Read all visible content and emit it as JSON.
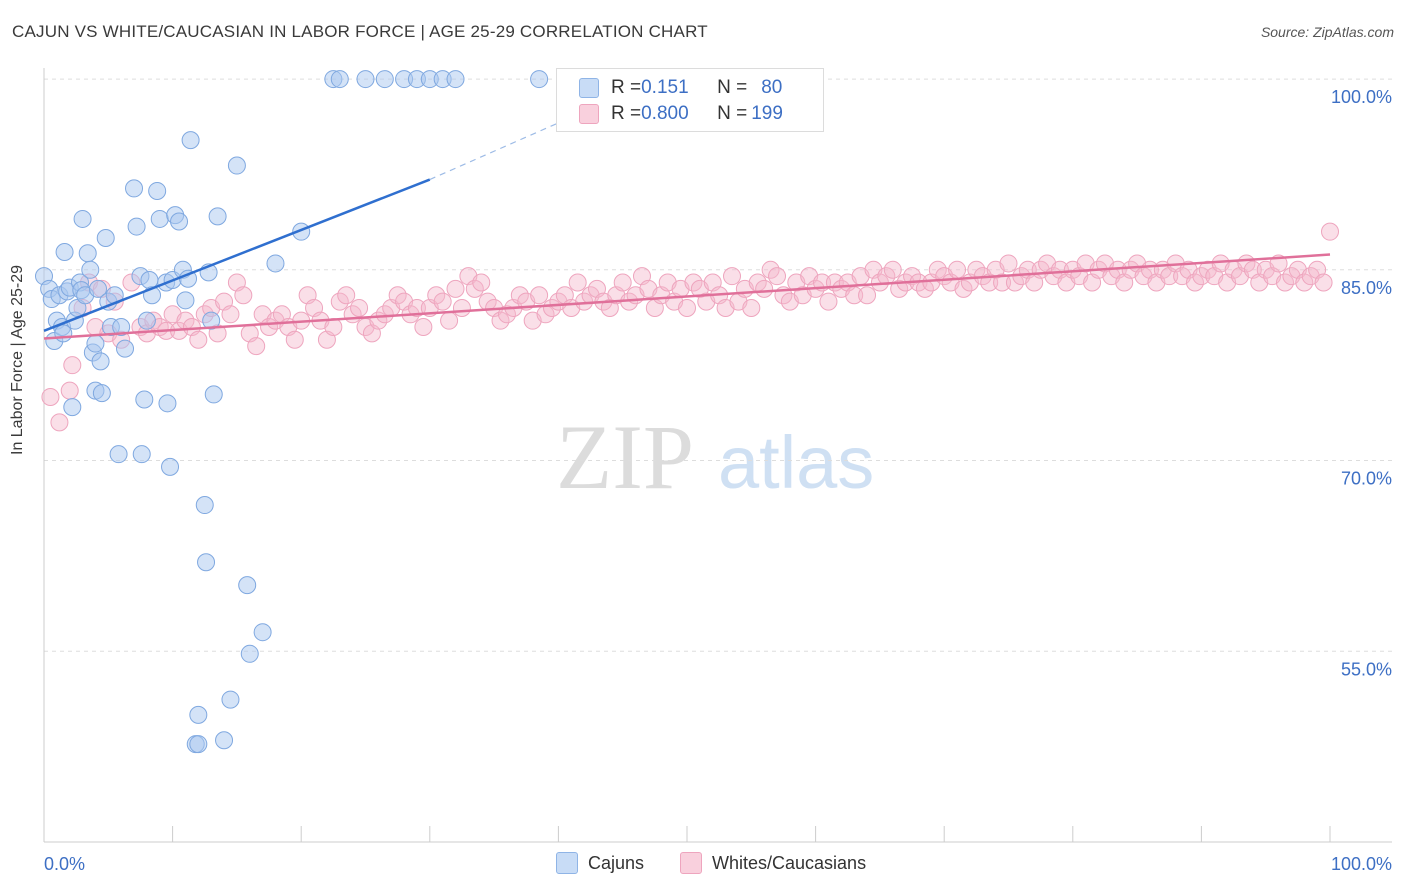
{
  "title": "CAJUN VS WHITE/CAUCASIAN IN LABOR FORCE | AGE 25-29 CORRELATION CHART",
  "source": "Source: ZipAtlas.com",
  "watermark": {
    "zip": "ZIP",
    "atlas": "atlas"
  },
  "legend": {
    "rows": [
      {
        "r_label": "R = ",
        "r_value": "0.151",
        "n_label": "N = ",
        "n_value": "80",
        "color": "#a9c7ef"
      },
      {
        "r_label": "R = ",
        "r_value": "0.800",
        "n_label": "N = ",
        "n_value": "199",
        "color": "#f5b9cd"
      }
    ]
  },
  "bottom_legend": [
    "Cajuns",
    "Whites/Caucasians"
  ],
  "chart_data": {
    "type": "scatter",
    "title": "CAJUN VS WHITE/CAUCASIAN IN LABOR FORCE | AGE 25-29 CORRELATION CHART",
    "xlabel": "",
    "ylabel": "In Labor Force | Age 25-29",
    "xlim": [
      0,
      100
    ],
    "ylim": [
      40,
      101.5
    ],
    "x_tick_labels": [
      "0.0%",
      "100.0%"
    ],
    "y_tick_labels": [
      "100.0%",
      "85.0%",
      "70.0%",
      "55.0%"
    ],
    "y_ticks": [
      100,
      85,
      70,
      55
    ],
    "grid": true,
    "colors": {
      "cajuns": "#6fa0e0",
      "whites": "#ee8fb0",
      "cajuns_line": "#2f6fcf",
      "whites_line": "#e0709a"
    },
    "series": [
      {
        "name": "Cajuns",
        "trend": {
          "x0": 0,
          "y0": 80.2,
          "x1": 30,
          "y1": 92.1
        },
        "trend_dashed": {
          "x0": 30,
          "y0": 92.1,
          "x1": 41,
          "y1": 97.0
        },
        "points": [
          [
            0,
            84.5
          ],
          [
            0.4,
            83.5
          ],
          [
            0.6,
            82.7
          ],
          [
            0.8,
            79.4
          ],
          [
            1,
            81
          ],
          [
            1.2,
            83
          ],
          [
            1.4,
            80.5
          ],
          [
            1.5,
            80
          ],
          [
            1.6,
            86.4
          ],
          [
            1.8,
            83.3
          ],
          [
            2,
            83.6
          ],
          [
            2.2,
            74.2
          ],
          [
            2.4,
            81
          ],
          [
            2.6,
            82
          ],
          [
            2.8,
            84
          ],
          [
            2.9,
            83.4
          ],
          [
            3,
            89
          ],
          [
            3.2,
            83
          ],
          [
            3.4,
            86.3
          ],
          [
            3.6,
            85
          ],
          [
            3.8,
            78.5
          ],
          [
            4,
            79.2
          ],
          [
            4,
            75.5
          ],
          [
            4.2,
            83.5
          ],
          [
            4.4,
            77.8
          ],
          [
            4.5,
            75.3
          ],
          [
            4.8,
            87.5
          ],
          [
            5,
            82.5
          ],
          [
            5.2,
            80.5
          ],
          [
            5.5,
            83
          ],
          [
            5.8,
            70.5
          ],
          [
            6,
            80.5
          ],
          [
            6.3,
            78.8
          ],
          [
            7,
            91.4
          ],
          [
            7.2,
            88.4
          ],
          [
            7.5,
            84.5
          ],
          [
            7.6,
            70.5
          ],
          [
            7.8,
            74.8
          ],
          [
            8,
            81
          ],
          [
            8.2,
            84.2
          ],
          [
            8.4,
            83
          ],
          [
            8.8,
            91.2
          ],
          [
            9,
            89
          ],
          [
            9.5,
            84
          ],
          [
            9.6,
            74.5
          ],
          [
            9.8,
            69.5
          ],
          [
            10,
            84.2
          ],
          [
            10.2,
            89.3
          ],
          [
            10.5,
            88.8
          ],
          [
            10.8,
            85
          ],
          [
            11,
            82.6
          ],
          [
            11.2,
            84.3
          ],
          [
            11.4,
            95.2
          ],
          [
            11.8,
            47.7
          ],
          [
            12,
            50
          ],
          [
            12,
            47.7
          ],
          [
            12.5,
            66.5
          ],
          [
            12.6,
            62
          ],
          [
            12.8,
            84.8
          ],
          [
            13,
            81
          ],
          [
            13.2,
            75.2
          ],
          [
            13.5,
            89.2
          ],
          [
            14,
            48
          ],
          [
            14.5,
            51.2
          ],
          [
            15,
            93.2
          ],
          [
            15.8,
            60.2
          ],
          [
            16,
            54.8
          ],
          [
            17,
            56.5
          ],
          [
            18,
            85.5
          ],
          [
            20,
            88
          ],
          [
            22.5,
            100
          ],
          [
            23,
            100
          ],
          [
            25,
            100
          ],
          [
            26.5,
            100
          ],
          [
            28,
            100
          ],
          [
            29,
            100
          ],
          [
            30,
            100
          ],
          [
            31,
            100
          ],
          [
            32,
            100
          ],
          [
            38.5,
            100
          ]
        ]
      },
      {
        "name": "Whites/Caucasians",
        "trend": {
          "x0": 0,
          "y0": 79.6,
          "x1": 100,
          "y1": 86.2
        },
        "points": [
          [
            0.5,
            75
          ],
          [
            1.2,
            73
          ],
          [
            2,
            75.5
          ],
          [
            2.2,
            77.5
          ],
          [
            3,
            82
          ],
          [
            3.5,
            84
          ],
          [
            4,
            80.5
          ],
          [
            4.5,
            83.5
          ],
          [
            5,
            80
          ],
          [
            5.5,
            82.5
          ],
          [
            6,
            79.5
          ],
          [
            6.8,
            84
          ],
          [
            7.5,
            80.5
          ],
          [
            8,
            80
          ],
          [
            8.5,
            81
          ],
          [
            9,
            80.5
          ],
          [
            9.5,
            80.2
          ],
          [
            10,
            81.5
          ],
          [
            10.5,
            80.2
          ],
          [
            11,
            81
          ],
          [
            11.5,
            80.5
          ],
          [
            12,
            79.5
          ],
          [
            12.5,
            81.5
          ],
          [
            13,
            82
          ],
          [
            13.5,
            80
          ],
          [
            14,
            82.5
          ],
          [
            14.5,
            81.5
          ],
          [
            15,
            84
          ],
          [
            15.5,
            83
          ],
          [
            16,
            80
          ],
          [
            16.5,
            79
          ],
          [
            17,
            81.5
          ],
          [
            17.5,
            80.5
          ],
          [
            18,
            81
          ],
          [
            18.5,
            81.5
          ],
          [
            19,
            80.5
          ],
          [
            19.5,
            79.5
          ],
          [
            20,
            81
          ],
          [
            20.5,
            83
          ],
          [
            21,
            82
          ],
          [
            21.5,
            81
          ],
          [
            22,
            79.5
          ],
          [
            22.5,
            80.5
          ],
          [
            23,
            82.5
          ],
          [
            23.5,
            83
          ],
          [
            24,
            81.5
          ],
          [
            24.5,
            82
          ],
          [
            25,
            80.5
          ],
          [
            25.5,
            80
          ],
          [
            26,
            81
          ],
          [
            26.5,
            81.5
          ],
          [
            27,
            82
          ],
          [
            27.5,
            83
          ],
          [
            28,
            82.5
          ],
          [
            28.5,
            81.5
          ],
          [
            29,
            82
          ],
          [
            29.5,
            80.5
          ],
          [
            30,
            82
          ],
          [
            30.5,
            83
          ],
          [
            31,
            82.5
          ],
          [
            31.5,
            81
          ],
          [
            32,
            83.5
          ],
          [
            32.5,
            82
          ],
          [
            33,
            84.5
          ],
          [
            33.5,
            83.5
          ],
          [
            34,
            84
          ],
          [
            34.5,
            82.5
          ],
          [
            35,
            82
          ],
          [
            35.5,
            81
          ],
          [
            36,
            81.5
          ],
          [
            36.5,
            82
          ],
          [
            37,
            83
          ],
          [
            37.5,
            82.5
          ],
          [
            38,
            81
          ],
          [
            38.5,
            83
          ],
          [
            39,
            81.5
          ],
          [
            39.5,
            82
          ],
          [
            40,
            82.5
          ],
          [
            40.5,
            83
          ],
          [
            41,
            82
          ],
          [
            41.5,
            84
          ],
          [
            42,
            82.5
          ],
          [
            42.5,
            83
          ],
          [
            43,
            83.5
          ],
          [
            43.5,
            82.5
          ],
          [
            44,
            82
          ],
          [
            44.5,
            83
          ],
          [
            45,
            84
          ],
          [
            45.5,
            82.5
          ],
          [
            46,
            83
          ],
          [
            46.5,
            84.5
          ],
          [
            47,
            83.5
          ],
          [
            47.5,
            82
          ],
          [
            48,
            83
          ],
          [
            48.5,
            84
          ],
          [
            49,
            82.5
          ],
          [
            49.5,
            83.5
          ],
          [
            50,
            82
          ],
          [
            50.5,
            84
          ],
          [
            51,
            83.5
          ],
          [
            51.5,
            82.5
          ],
          [
            52,
            84
          ],
          [
            52.5,
            83
          ],
          [
            53,
            82
          ],
          [
            53.5,
            84.5
          ],
          [
            54,
            82.5
          ],
          [
            54.5,
            83.5
          ],
          [
            55,
            82
          ],
          [
            55.5,
            84
          ],
          [
            56,
            83.5
          ],
          [
            56.5,
            85
          ],
          [
            57,
            84.5
          ],
          [
            57.5,
            83
          ],
          [
            58,
            82.5
          ],
          [
            58.5,
            84
          ],
          [
            59,
            83
          ],
          [
            59.5,
            84.5
          ],
          [
            60,
            83.5
          ],
          [
            60.5,
            84
          ],
          [
            61,
            82.5
          ],
          [
            61.5,
            84
          ],
          [
            62,
            83.5
          ],
          [
            62.5,
            84
          ],
          [
            63,
            83
          ],
          [
            63.5,
            84.5
          ],
          [
            64,
            83
          ],
          [
            64.5,
            85
          ],
          [
            65,
            84
          ],
          [
            65.5,
            84.5
          ],
          [
            66,
            85
          ],
          [
            66.5,
            83.5
          ],
          [
            67,
            84
          ],
          [
            67.5,
            84.5
          ],
          [
            68,
            84
          ],
          [
            68.5,
            83.5
          ],
          [
            69,
            84
          ],
          [
            69.5,
            85
          ],
          [
            70,
            84.5
          ],
          [
            70.5,
            84
          ],
          [
            71,
            85
          ],
          [
            71.5,
            83.5
          ],
          [
            72,
            84
          ],
          [
            72.5,
            85
          ],
          [
            73,
            84.5
          ],
          [
            73.5,
            84
          ],
          [
            74,
            85
          ],
          [
            74.5,
            84
          ],
          [
            75,
            85.5
          ],
          [
            75.5,
            84
          ],
          [
            76,
            84.5
          ],
          [
            76.5,
            85
          ],
          [
            77,
            84
          ],
          [
            77.5,
            85
          ],
          [
            78,
            85.5
          ],
          [
            78.5,
            84.5
          ],
          [
            79,
            85
          ],
          [
            79.5,
            84
          ],
          [
            80,
            85
          ],
          [
            80.5,
            84.5
          ],
          [
            81,
            85.5
          ],
          [
            81.5,
            84
          ],
          [
            82,
            85
          ],
          [
            82.5,
            85.5
          ],
          [
            83,
            84.5
          ],
          [
            83.5,
            85
          ],
          [
            84,
            84
          ],
          [
            84.5,
            85
          ],
          [
            85,
            85.5
          ],
          [
            85.5,
            84.5
          ],
          [
            86,
            85
          ],
          [
            86.5,
            84
          ],
          [
            87,
            85
          ],
          [
            87.5,
            84.5
          ],
          [
            88,
            85.5
          ],
          [
            88.5,
            84.5
          ],
          [
            89,
            85
          ],
          [
            89.5,
            84
          ],
          [
            90,
            84.5
          ],
          [
            90.5,
            85
          ],
          [
            91,
            84.5
          ],
          [
            91.5,
            85.5
          ],
          [
            92,
            84
          ],
          [
            92.5,
            85
          ],
          [
            93,
            84.5
          ],
          [
            93.5,
            85.5
          ],
          [
            94,
            85
          ],
          [
            94.5,
            84
          ],
          [
            95,
            85
          ],
          [
            95.5,
            84.5
          ],
          [
            96,
            85.5
          ],
          [
            96.5,
            84
          ],
          [
            97,
            84.5
          ],
          [
            97.5,
            85
          ],
          [
            98,
            84
          ],
          [
            98.5,
            84.5
          ],
          [
            99,
            85
          ],
          [
            99.5,
            84
          ],
          [
            100,
            88
          ]
        ]
      }
    ]
  }
}
